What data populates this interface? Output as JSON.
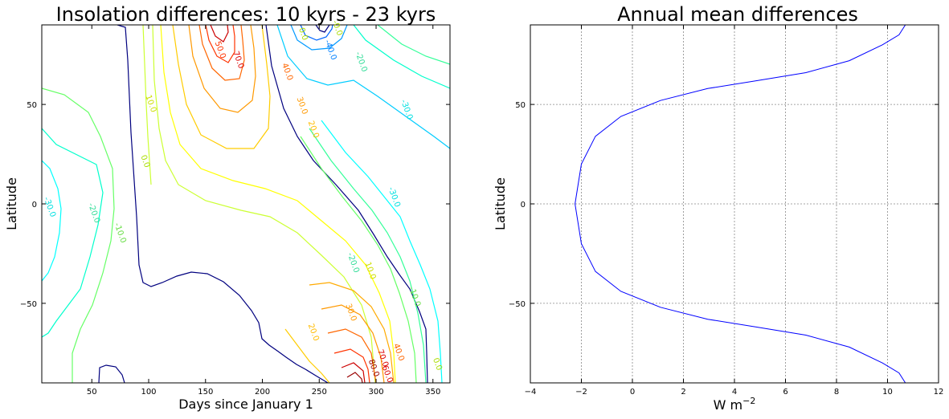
{
  "chart_data": [
    {
      "type": "contour",
      "title": "Insolation differences: 10 kyrs - 23 kyrs",
      "xlabel": "Days since January 1",
      "ylabel": "Latitude",
      "xlim": [
        6,
        365
      ],
      "ylim": [
        -90,
        90
      ],
      "xticks": [
        50,
        100,
        150,
        200,
        250,
        300,
        350
      ],
      "yticks": [
        -50,
        0,
        50
      ],
      "colormap": "jet",
      "contour_labels": [
        {
          "x": 234,
          "y": 85,
          "text": "0.0"
        },
        {
          "x": 264,
          "y": 88,
          "text": "-0.0"
        },
        {
          "x": 258,
          "y": 77,
          "text": "-40.0"
        },
        {
          "x": 285,
          "y": 71,
          "text": "-20.0"
        },
        {
          "x": 177,
          "y": 72,
          "text": "70.0"
        },
        {
          "x": 161,
          "y": 77,
          "text": "50.0"
        },
        {
          "x": 220,
          "y": 66,
          "text": "40.0"
        },
        {
          "x": 233,
          "y": 49,
          "text": "30.0"
        },
        {
          "x": 100,
          "y": 50,
          "text": "10.0"
        },
        {
          "x": 325,
          "y": 47,
          "text": "-30.0"
        },
        {
          "x": 243,
          "y": 37,
          "text": "20.0"
        },
        {
          "x": 95,
          "y": 21,
          "text": "0.0"
        },
        {
          "x": 314,
          "y": 3,
          "text": "-30.0"
        },
        {
          "x": 11,
          "y": -2,
          "text": "-30.0"
        },
        {
          "x": 50,
          "y": -5,
          "text": "-20.0"
        },
        {
          "x": 73,
          "y": -15,
          "text": "-10.0"
        },
        {
          "x": 278,
          "y": -30,
          "text": "-20.0"
        },
        {
          "x": 332,
          "y": -47,
          "text": "-10.0"
        },
        {
          "x": 293,
          "y": -34,
          "text": "10.0"
        },
        {
          "x": 276,
          "y": -55,
          "text": "30.0"
        },
        {
          "x": 243,
          "y": -65,
          "text": "20.0"
        },
        {
          "x": 304,
          "y": -78,
          "text": "70.0"
        },
        {
          "x": 296,
          "y": -83,
          "text": "80.0"
        },
        {
          "x": 308,
          "y": -86,
          "text": "60.0"
        },
        {
          "x": 318,
          "y": -75,
          "text": "40.0"
        },
        {
          "x": 352,
          "y": -81,
          "text": "0.0"
        }
      ]
    },
    {
      "type": "line",
      "title": "Annual mean differences",
      "xlabel": "W m",
      "xlabel_sup": "−2",
      "ylabel": "Latitude",
      "xlim": [
        -4,
        12
      ],
      "ylim": [
        -90,
        90
      ],
      "xticks": [
        -4,
        -2,
        0,
        2,
        4,
        6,
        8,
        10,
        12
      ],
      "yticks": [
        -50,
        0,
        50
      ],
      "grid": true,
      "series": [
        {
          "color": "#0000ff",
          "x": [
            10.7,
            10.45,
            9.8,
            8.5,
            6.8,
            4.9,
            2.95,
            1.1,
            -0.45,
            -1.45,
            -2.0,
            -2.25,
            -2.0,
            -1.45,
            -0.45,
            1.1,
            2.95,
            4.9,
            6.8,
            8.5,
            9.8,
            10.45,
            10.7
          ],
          "y": [
            90,
            85,
            80,
            72,
            66,
            62,
            58,
            52,
            44,
            34,
            20,
            0,
            -20,
            -34,
            -44,
            -52,
            -58,
            -62,
            -66,
            -72,
            -80,
            -85,
            -90
          ]
        }
      ]
    }
  ]
}
